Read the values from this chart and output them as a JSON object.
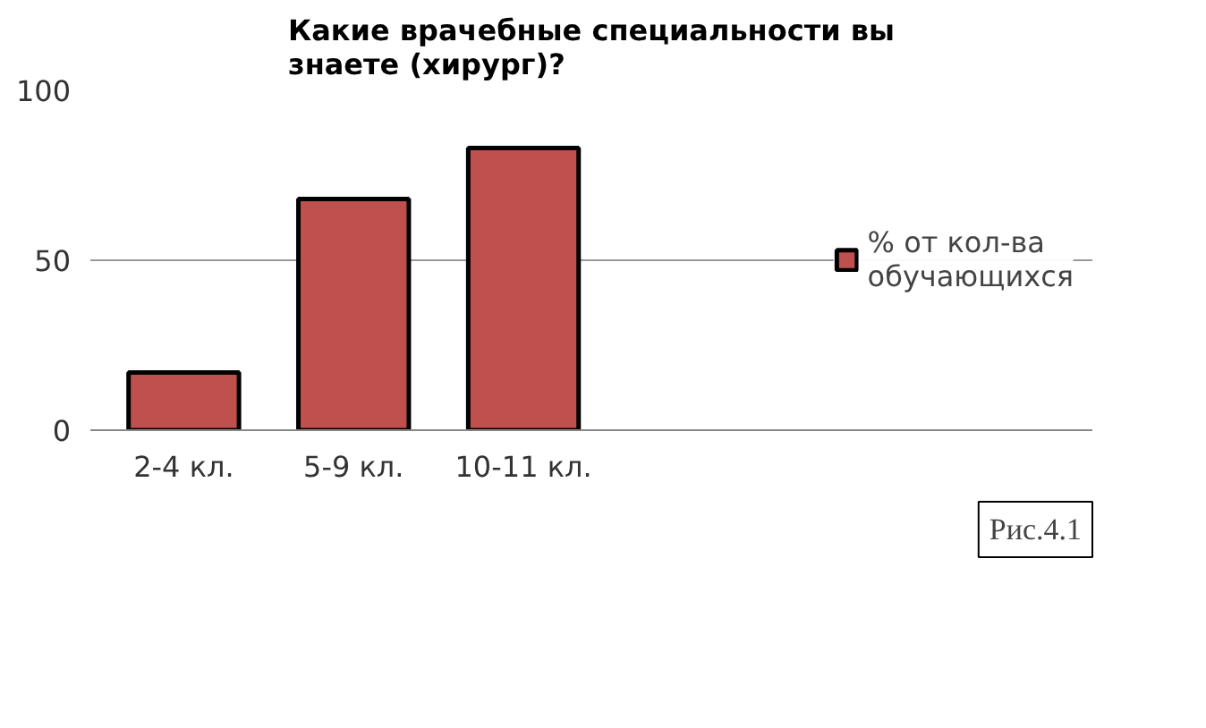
{
  "chart_data": {
    "type": "bar",
    "title": "Какие врачебные специальности вы знаете (хирург)?",
    "categories": [
      "2-4 кл.",
      "5-9 кл.",
      "10-11 кл."
    ],
    "series": [
      {
        "name": "% от кол-ва обучающихся",
        "color": "#c0504d",
        "values": [
          17,
          68,
          83
        ]
      }
    ],
    "ylim": [
      0,
      100
    ],
    "yticks": [
      0,
      50,
      100
    ],
    "grid": "y",
    "legend": "right",
    "annotations": [
      "Рис.4.1"
    ]
  }
}
